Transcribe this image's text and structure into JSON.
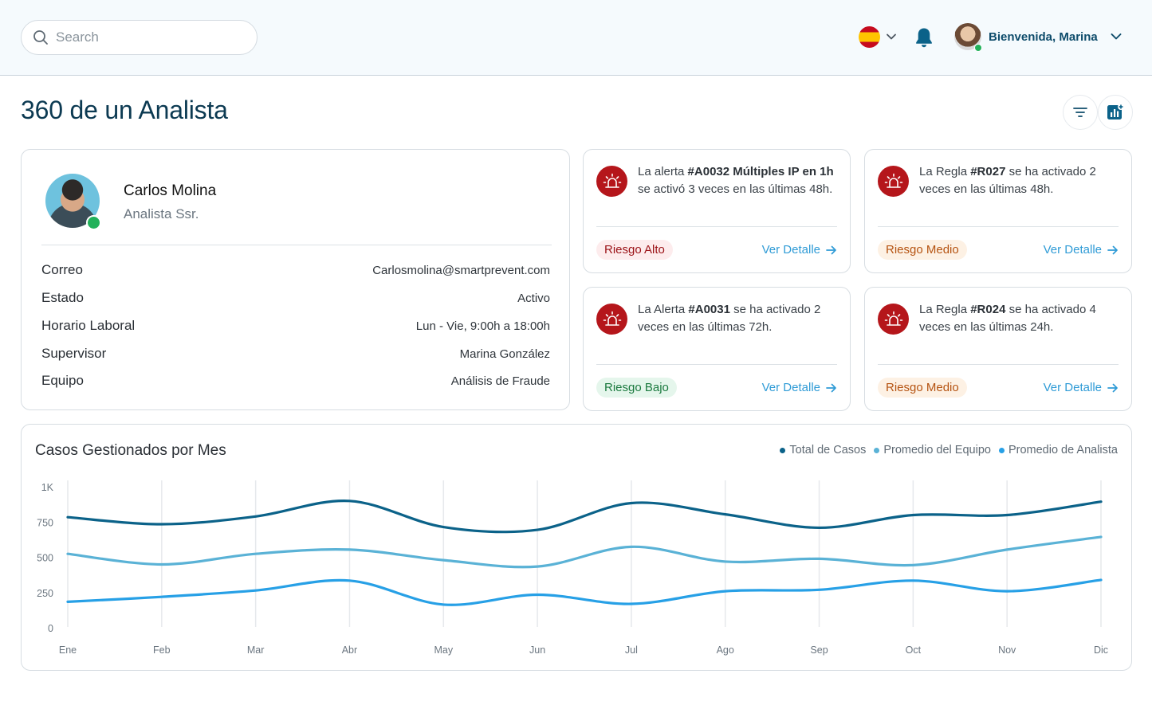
{
  "header": {
    "search_placeholder": "Search",
    "language_flag": "spain-flag",
    "welcome": "Bienvenida, Marina"
  },
  "page": {
    "title": "360 de un Analista"
  },
  "profile": {
    "name": "Carlos Molina",
    "role": "Analista Ssr.",
    "status": "online",
    "fields": [
      {
        "label": "Correo",
        "value": "Carlosmolina@smartprevent.com"
      },
      {
        "label": "Estado",
        "value": "Activo"
      },
      {
        "label": "Horario Laboral",
        "value": "Lun - Vie, 9:00h a 18:00h"
      },
      {
        "label": "Supervisor",
        "value": "Marina González"
      },
      {
        "label": "Equipo",
        "value": "Análisis de Fraude"
      }
    ]
  },
  "alerts": [
    {
      "pre": "La alerta ",
      "bold": "#A0032 Múltiples IP en 1h",
      "post": " se activó 3 veces en las últimas 48h.",
      "risk": "Riesgo Alto",
      "risk_level": "alto",
      "link": "Ver Detalle"
    },
    {
      "pre": "La Regla ",
      "bold": "#R027",
      "post": " se ha activado 2 veces en las últimas 48h.",
      "risk": "Riesgo Medio",
      "risk_level": "medio",
      "link": "Ver Detalle"
    },
    {
      "pre": "La Alerta ",
      "bold": "#A0031",
      "post": " se ha activado 2 veces en las últimas 72h.",
      "risk": "Riesgo Bajo",
      "risk_level": "bajo",
      "link": "Ver Detalle"
    },
    {
      "pre": "La Regla ",
      "bold": "#R024",
      "post": " se ha activado 4 veces en las últimas 24h.",
      "risk": "Riesgo Medio",
      "risk_level": "medio",
      "link": "Ver Detalle"
    }
  ],
  "colors": {
    "primary": "#0c3a52",
    "alert_red": "#b5161b",
    "link": "#2f9bd6",
    "online": "#22b15a"
  },
  "chart_data": {
    "type": "line",
    "title": "Casos Gestionados por Mes",
    "categories": [
      "Ene",
      "Feb",
      "Mar",
      "Abr",
      "May",
      "Jun",
      "Jul",
      "Ago",
      "Sep",
      "Oct",
      "Nov",
      "Dic"
    ],
    "y_ticks": [
      "1K",
      "750",
      "500",
      "250",
      "0"
    ],
    "ylim": [
      0,
      1000
    ],
    "grid": "vertical",
    "legend_position": "top-right",
    "series": [
      {
        "name": "Total de Casos",
        "color": "#0b6289",
        "values": [
          790,
          740,
          795,
          905,
          720,
          700,
          890,
          810,
          715,
          805,
          805,
          900
        ]
      },
      {
        "name": "Promedio del Equipo",
        "color": "#5ab2d6",
        "values": [
          530,
          455,
          530,
          560,
          485,
          440,
          580,
          475,
          495,
          450,
          560,
          650
        ]
      },
      {
        "name": "Promedio de Analista",
        "color": "#27a0e6",
        "values": [
          190,
          225,
          270,
          340,
          170,
          240,
          175,
          265,
          275,
          340,
          265,
          345
        ]
      }
    ]
  }
}
